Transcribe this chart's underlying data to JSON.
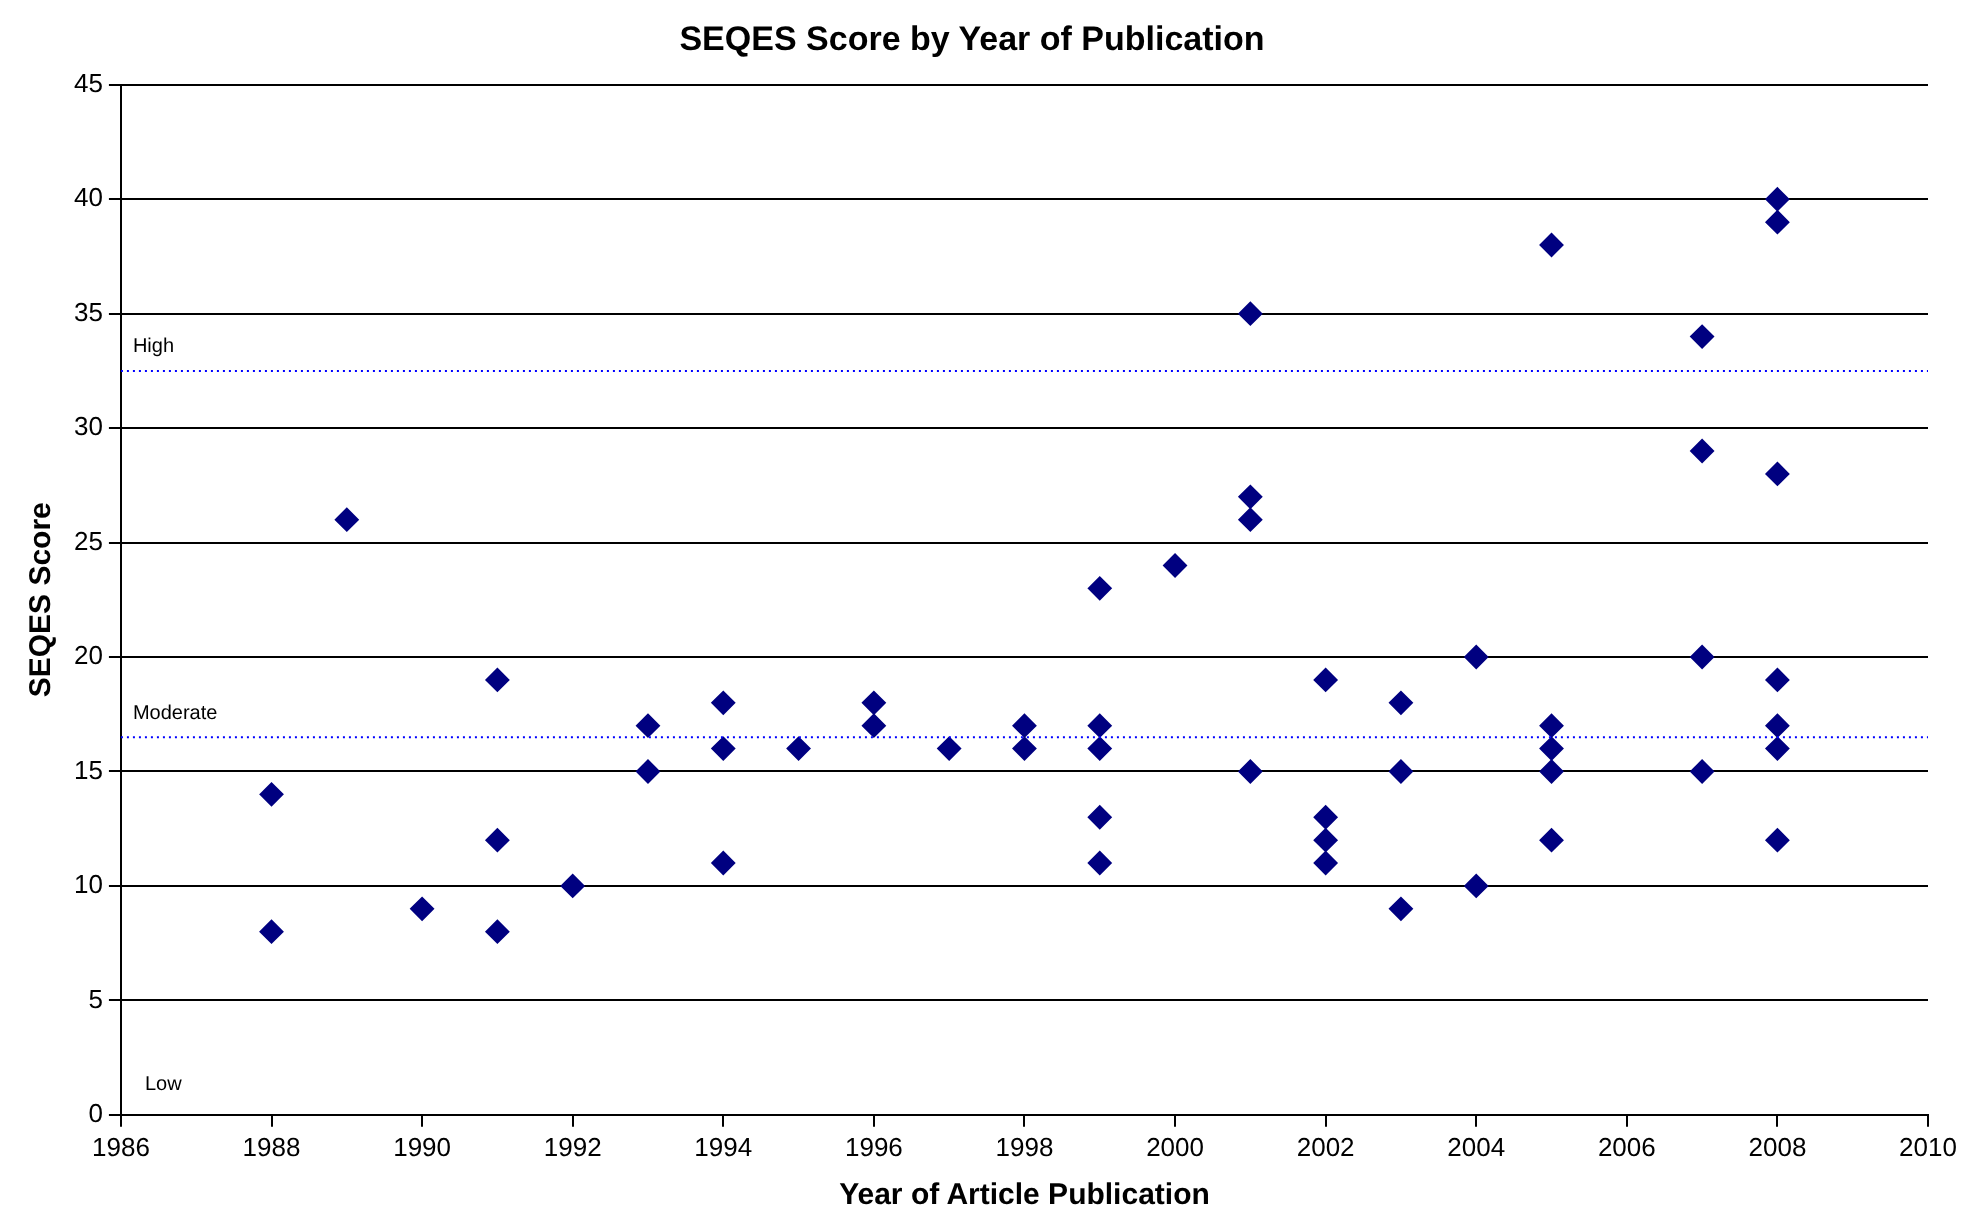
{
  "chart_data": {
    "type": "scatter",
    "title": "SEQES Score by Year of Publication",
    "xlabel": "Year of Article Publication",
    "ylabel": "SEQES Score",
    "x": [
      1988,
      1988,
      1989,
      1990,
      1991,
      1991,
      1991,
      1992,
      1993,
      1993,
      1994,
      1994,
      1994,
      1995,
      1996,
      1996,
      1997,
      1998,
      1998,
      1999,
      1999,
      1999,
      1999,
      1999,
      2000,
      2001,
      2001,
      2001,
      2001,
      2002,
      2002,
      2002,
      2002,
      2003,
      2003,
      2003,
      2004,
      2004,
      2005,
      2005,
      2005,
      2005,
      2005,
      2007,
      2007,
      2007,
      2007,
      2008,
      2008,
      2008,
      2008,
      2008,
      2008,
      2008
    ],
    "values": [
      14,
      8,
      26,
      9,
      19,
      12,
      8,
      10,
      17,
      15,
      18,
      16,
      11,
      16,
      18,
      17,
      16,
      17,
      16,
      23,
      17,
      16,
      13,
      11,
      24,
      35,
      27,
      26,
      15,
      19,
      13,
      12,
      11,
      18,
      15,
      9,
      20,
      10,
      38,
      17,
      16,
      15,
      12,
      34,
      29,
      20,
      15,
      40,
      39,
      28,
      19,
      17,
      16,
      12
    ],
    "color": "#000080",
    "marker": "diamond",
    "xlim": [
      1986,
      2010
    ],
    "xticks": [
      1986,
      1988,
      1990,
      1992,
      1994,
      1996,
      1998,
      2000,
      2002,
      2004,
      2006,
      2008,
      2010
    ],
    "ylim": [
      0,
      45
    ],
    "yticks": [
      0,
      5,
      10,
      15,
      20,
      25,
      30,
      35,
      40,
      45
    ],
    "grid": "y",
    "ref_lines": [
      {
        "axis": "y",
        "value": 32.5,
        "label": "High",
        "color": "#0000ff",
        "line_style": "dotted"
      },
      {
        "axis": "y",
        "value": 16.5,
        "label": "Moderate",
        "color": "#0000ff",
        "line_style": "dotted"
      }
    ],
    "annotations": [
      "Low"
    ]
  }
}
